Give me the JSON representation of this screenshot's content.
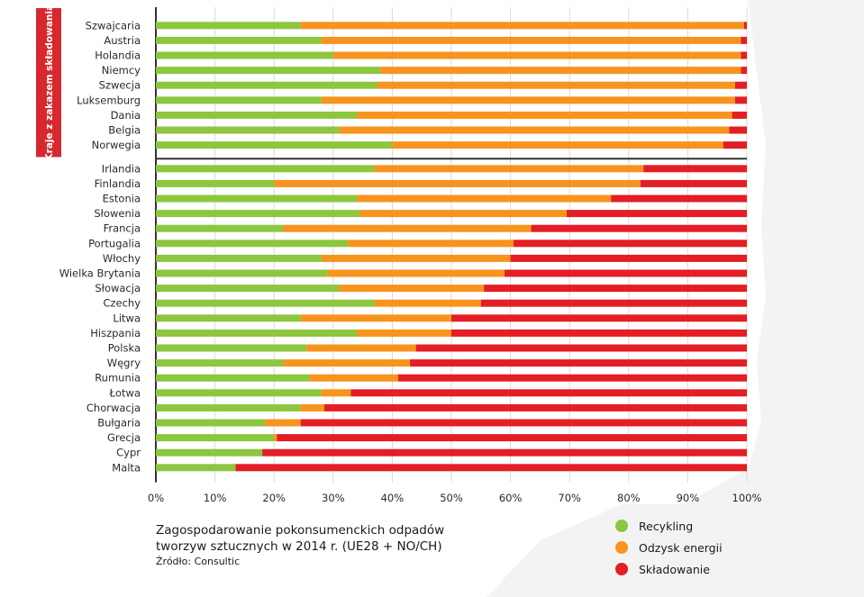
{
  "colors": {
    "recycling": "#8dc63f",
    "energy": "#f7941d",
    "landfill": "#e31e24",
    "group_box": "#d7282f",
    "grid": "#d9d9d9"
  },
  "caption": {
    "line1": "Zagospodarowanie pokonsumenckich odpadów",
    "line2": "tworzyw sztucznych w 2014 r. (UE28 + NO/CH)",
    "source": "Źródło: Consultic"
  },
  "chart_data": {
    "type": "bar",
    "orientation": "horizontal",
    "stacked": true,
    "xlim": [
      0,
      100
    ],
    "x_ticks": [
      "0%",
      "10%",
      "20%",
      "30%",
      "40%",
      "50%",
      "60%",
      "70%",
      "80%",
      "90%",
      "100%"
    ],
    "grid": true,
    "legend_position": "bottom-right",
    "series": [
      {
        "name": "Recykling",
        "key": "recycling"
      },
      {
        "name": "Odzysk energii",
        "key": "energy"
      },
      {
        "name": "Składowanie",
        "key": "landfill"
      }
    ],
    "groups": [
      {
        "label": "Kraje z zakazem składowania",
        "rows": [
          {
            "country": "Szwajcaria",
            "recycling": 24.5,
            "energy": 75,
            "landfill": 0.5
          },
          {
            "country": "Austria",
            "recycling": 28,
            "energy": 71,
            "landfill": 1
          },
          {
            "country": "Holandia",
            "recycling": 30,
            "energy": 69,
            "landfill": 1
          },
          {
            "country": "Niemcy",
            "recycling": 38,
            "energy": 61,
            "landfill": 1
          },
          {
            "country": "Szwecja",
            "recycling": 37.5,
            "energy": 60.5,
            "landfill": 2
          },
          {
            "country": "Luksemburg",
            "recycling": 28,
            "energy": 70,
            "landfill": 2
          },
          {
            "country": "Dania",
            "recycling": 34,
            "energy": 63.5,
            "landfill": 2.5
          },
          {
            "country": "Belgia",
            "recycling": 31,
            "energy": 66,
            "landfill": 3
          },
          {
            "country": "Norwegia",
            "recycling": 40,
            "energy": 56,
            "landfill": 4
          }
        ]
      },
      {
        "label": "",
        "rows": [
          {
            "country": "Irlandia",
            "recycling": 37,
            "energy": 45.5,
            "landfill": 17.5
          },
          {
            "country": "Finlandia",
            "recycling": 20,
            "energy": 62,
            "landfill": 18
          },
          {
            "country": "Estonia",
            "recycling": 34,
            "energy": 43,
            "landfill": 23
          },
          {
            "country": "Słowenia",
            "recycling": 34.5,
            "energy": 35,
            "landfill": 30.5
          },
          {
            "country": "Francja",
            "recycling": 21.5,
            "energy": 42,
            "landfill": 36.5
          },
          {
            "country": "Portugalia",
            "recycling": 32.5,
            "energy": 28,
            "landfill": 39.5
          },
          {
            "country": "Włochy",
            "recycling": 28,
            "energy": 32,
            "landfill": 40
          },
          {
            "country": "Wielka Brytania",
            "recycling": 29,
            "energy": 30,
            "landfill": 41
          },
          {
            "country": "Słowacja",
            "recycling": 31,
            "energy": 24.5,
            "landfill": 44.5
          },
          {
            "country": "Czechy",
            "recycling": 37,
            "energy": 18,
            "landfill": 45
          },
          {
            "country": "Litwa",
            "recycling": 24.5,
            "energy": 25.5,
            "landfill": 50
          },
          {
            "country": "Hiszpania",
            "recycling": 34,
            "energy": 16,
            "landfill": 50
          },
          {
            "country": "Polska",
            "recycling": 25.5,
            "energy": 18.5,
            "landfill": 56
          },
          {
            "country": "Węgry",
            "recycling": 21.5,
            "energy": 21.5,
            "landfill": 57
          },
          {
            "country": "Rumunia",
            "recycling": 26,
            "energy": 15,
            "landfill": 59
          },
          {
            "country": "Łotwa",
            "recycling": 28,
            "energy": 5,
            "landfill": 67
          },
          {
            "country": "Chorwacja",
            "recycling": 24.5,
            "energy": 4,
            "landfill": 71.5
          },
          {
            "country": "Bułgaria",
            "recycling": 18.5,
            "energy": 6,
            "landfill": 75.5
          },
          {
            "country": "Grecja",
            "recycling": 20,
            "energy": 0.5,
            "landfill": 79.5
          },
          {
            "country": "Cypr",
            "recycling": 18,
            "energy": 0,
            "landfill": 82
          },
          {
            "country": "Malta",
            "recycling": 13.5,
            "energy": 0,
            "landfill": 86.5
          }
        ]
      }
    ]
  }
}
